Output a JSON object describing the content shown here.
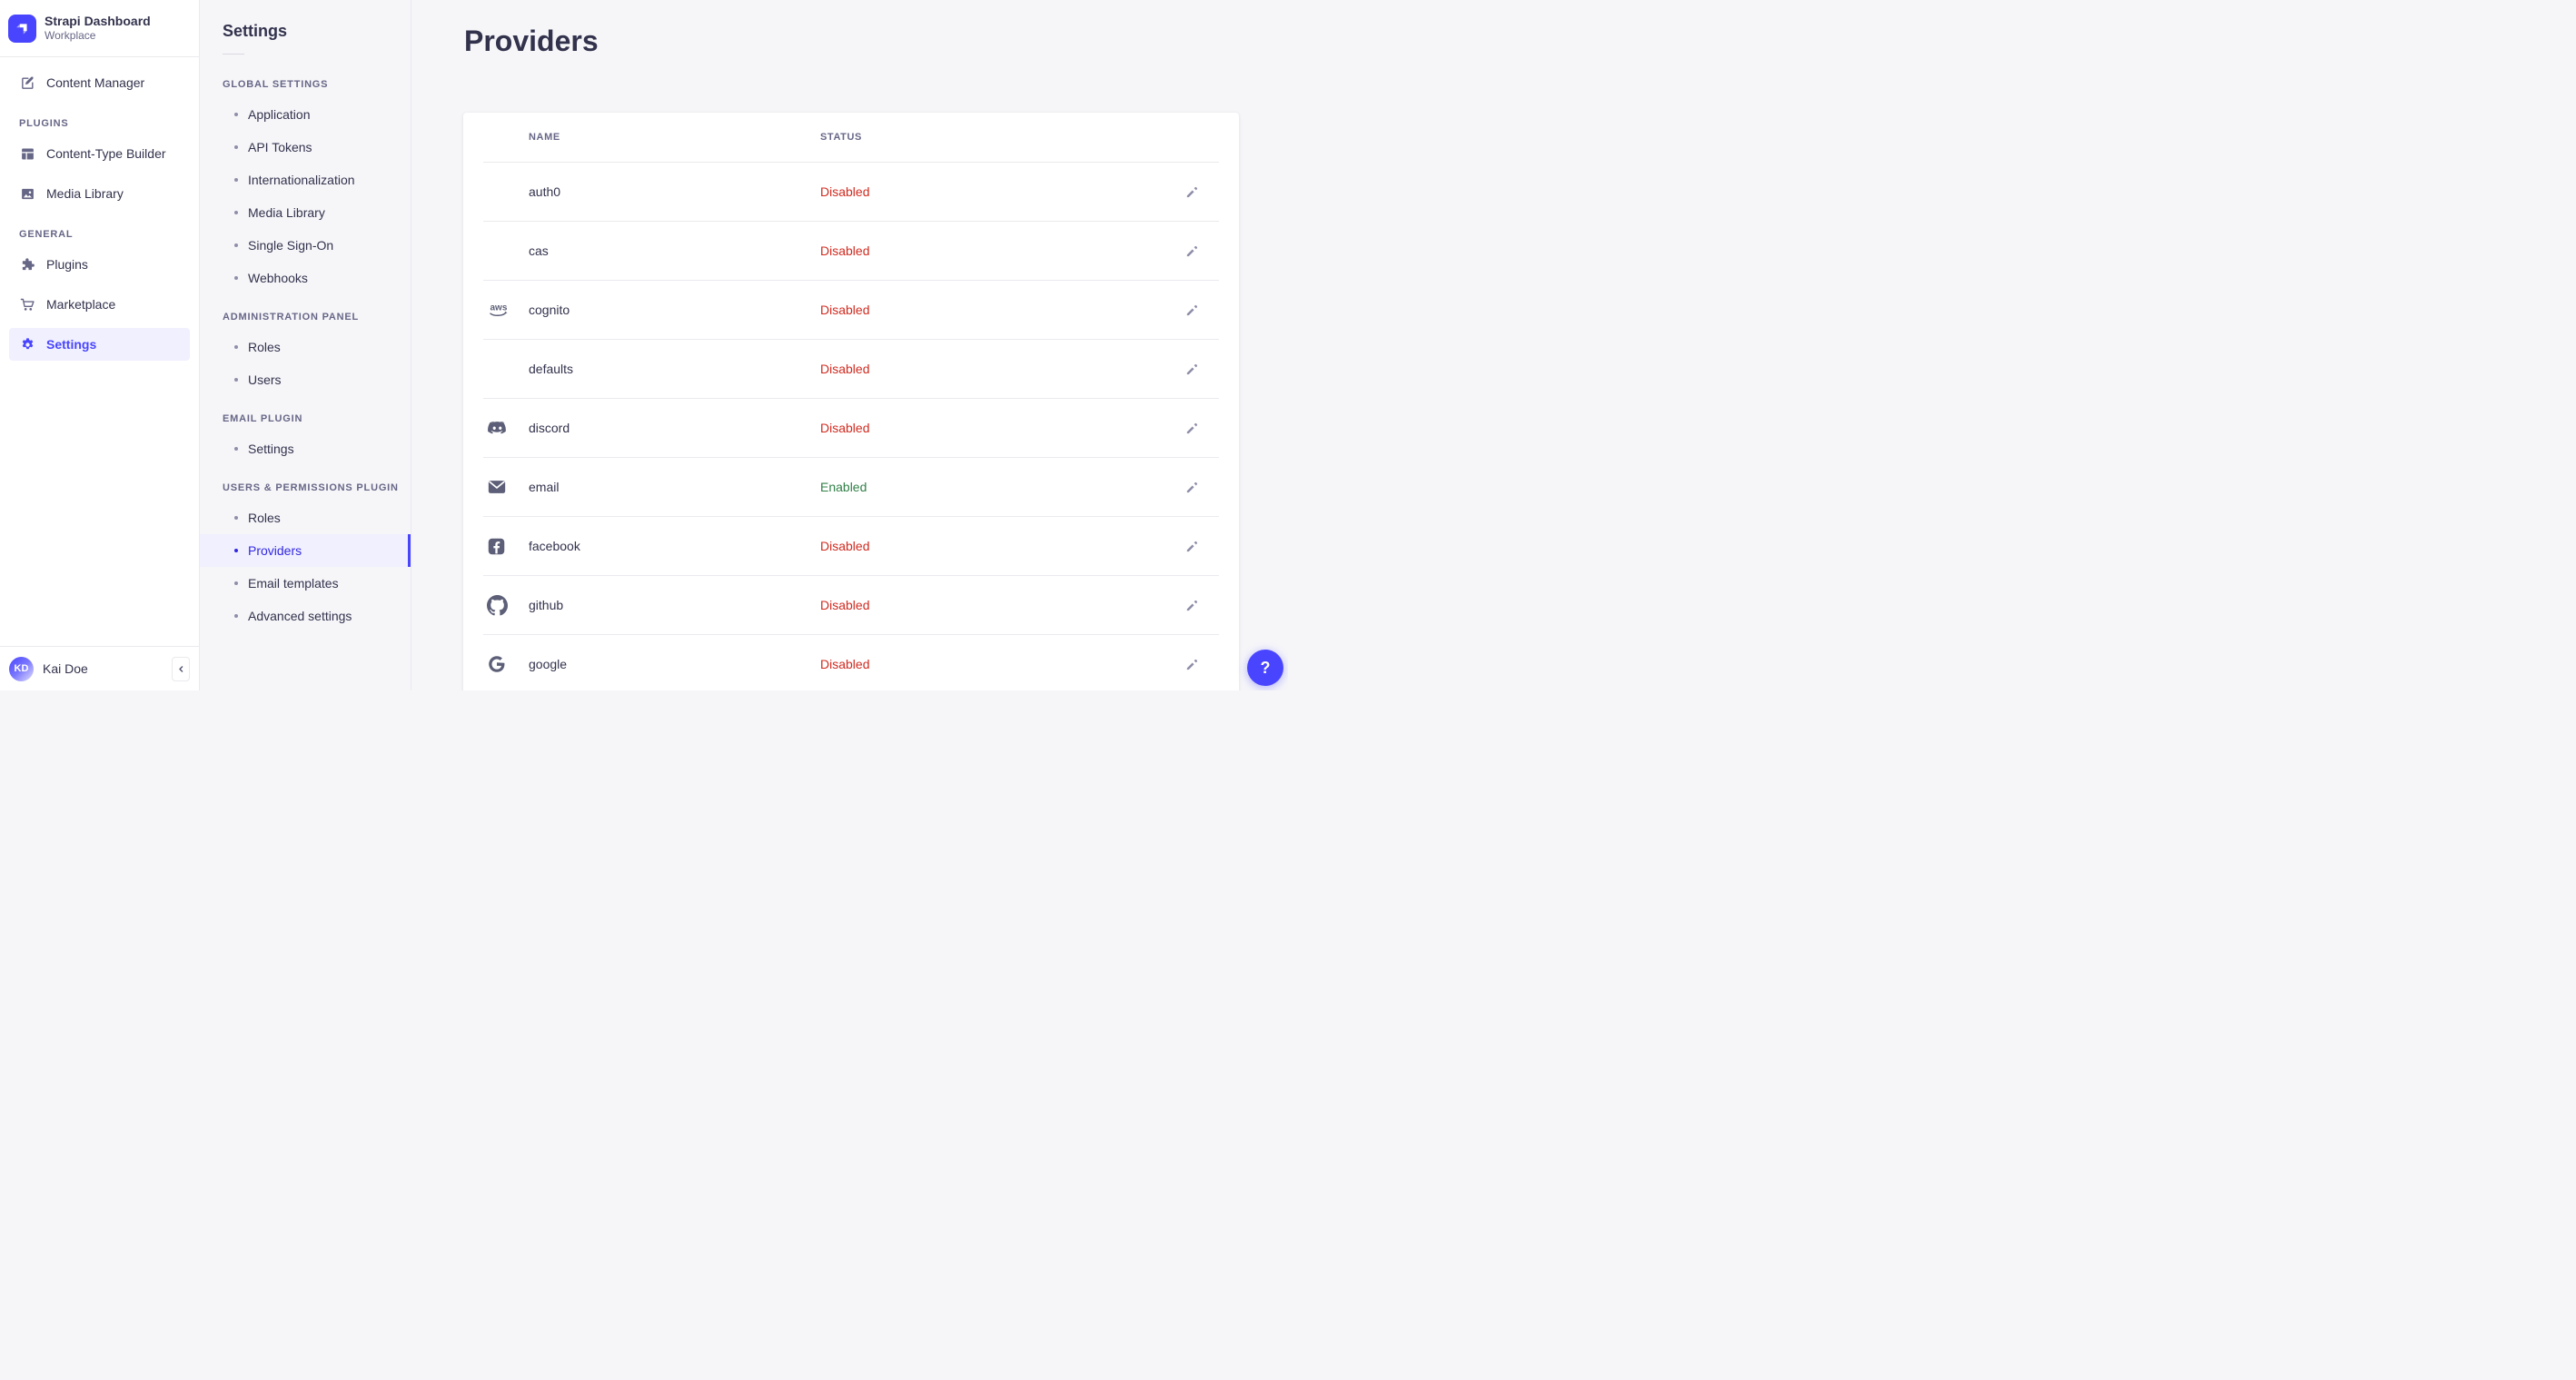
{
  "colors": {
    "accent": "#4945ff",
    "active_background": "#f0f0ff",
    "status_enabled": "#328048",
    "status_disabled": "#d02b20"
  },
  "sidebar": {
    "brand": {
      "title": "Strapi Dashboard",
      "subtitle": "Workplace"
    },
    "content_manager": {
      "label": "Content Manager"
    },
    "sections": [
      {
        "label": "PLUGINS",
        "items": [
          {
            "label": "Content-Type Builder",
            "icon": "layout-grid-icon"
          },
          {
            "label": "Media Library",
            "icon": "image-icon"
          }
        ]
      },
      {
        "label": "GENERAL",
        "items": [
          {
            "label": "Plugins",
            "icon": "puzzle-icon"
          },
          {
            "label": "Marketplace",
            "icon": "cart-icon"
          },
          {
            "label": "Settings",
            "icon": "gear-icon",
            "active": true
          }
        ]
      }
    ],
    "user": {
      "initials": "KD",
      "name": "Kai Doe"
    }
  },
  "subnav": {
    "heading": "Settings",
    "sections": [
      {
        "label": "GLOBAL SETTINGS",
        "items": [
          {
            "label": "Application"
          },
          {
            "label": "API Tokens"
          },
          {
            "label": "Internationalization"
          },
          {
            "label": "Media Library"
          },
          {
            "label": "Single Sign-On"
          },
          {
            "label": "Webhooks"
          }
        ]
      },
      {
        "label": "ADMINISTRATION PANEL",
        "items": [
          {
            "label": "Roles"
          },
          {
            "label": "Users"
          }
        ]
      },
      {
        "label": "EMAIL PLUGIN",
        "items": [
          {
            "label": "Settings"
          }
        ]
      },
      {
        "label": "USERS & PERMISSIONS PLUGIN",
        "items": [
          {
            "label": "Roles"
          },
          {
            "label": "Providers",
            "active": true
          },
          {
            "label": "Email templates"
          },
          {
            "label": "Advanced settings"
          }
        ]
      }
    ]
  },
  "main": {
    "title": "Providers",
    "table": {
      "columns": [
        "NAME",
        "STATUS"
      ],
      "rows": [
        {
          "name": "auth0",
          "icon": null,
          "status": "Disabled"
        },
        {
          "name": "cas",
          "icon": null,
          "status": "Disabled"
        },
        {
          "name": "cognito",
          "icon": "aws-logo-icon",
          "status": "Disabled"
        },
        {
          "name": "defaults",
          "icon": null,
          "status": "Disabled"
        },
        {
          "name": "discord",
          "icon": "discord-icon",
          "status": "Disabled"
        },
        {
          "name": "email",
          "icon": "email-envelope-icon",
          "status": "Enabled"
        },
        {
          "name": "facebook",
          "icon": "facebook-icon",
          "status": "Disabled"
        },
        {
          "name": "github",
          "icon": "github-icon",
          "status": "Disabled"
        },
        {
          "name": "google",
          "icon": "google-icon",
          "status": "Disabled"
        }
      ]
    }
  },
  "help_button": {
    "label": "?"
  }
}
